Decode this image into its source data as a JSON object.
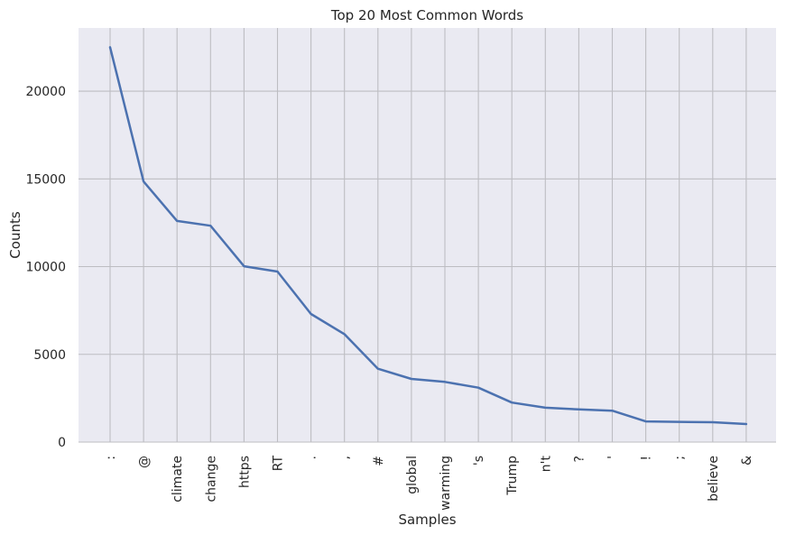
{
  "chart_data": {
    "type": "line",
    "title": "Top 20 Most Common Words",
    "xlabel": "Samples",
    "ylabel": "Counts",
    "categories": [
      ":",
      "@",
      "climate",
      "change",
      "https",
      "RT",
      ".",
      ",",
      "#",
      "global",
      "warming",
      "'s",
      "Trump",
      "n't",
      "?",
      "'",
      "!",
      ";",
      "believe",
      "&"
    ],
    "values": [
      22500,
      14850,
      12600,
      12330,
      10020,
      9720,
      7300,
      6150,
      4180,
      3600,
      3430,
      3100,
      2250,
      1960,
      1860,
      1790,
      1180,
      1150,
      1130,
      1030
    ],
    "yticks": [
      0,
      5000,
      10000,
      15000,
      20000
    ],
    "ylim": [
      0,
      23600
    ],
    "grid": true,
    "line_color": "#4c72b0",
    "plot_background": "#eaeaf2",
    "grid_color": "#bdbdc2"
  }
}
